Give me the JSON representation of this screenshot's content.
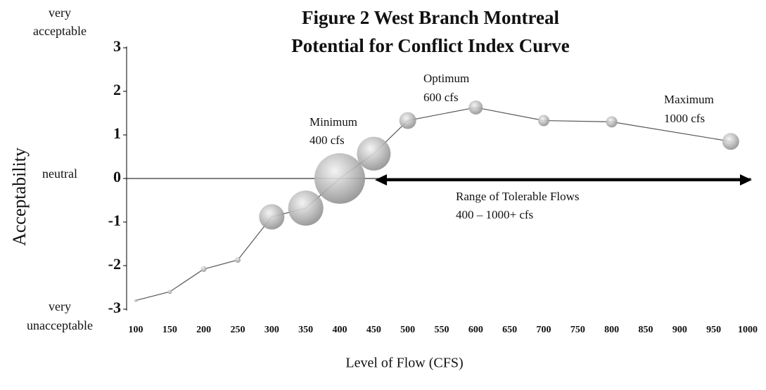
{
  "chart_data": {
    "type": "bubble_line",
    "title": [
      "Figure 2 West Branch Montreal",
      "Potential for Conflict Index Curve"
    ],
    "y_label": "Acceptability",
    "x_label": "Level of Flow (CFS)",
    "side_labels": {
      "top": [
        "very",
        "acceptable"
      ],
      "middle": "neutral",
      "bottom": [
        "very",
        "unacceptable"
      ]
    },
    "annotations": {
      "minimum": [
        "Minimum",
        "400 cfs"
      ],
      "optimum": [
        "Optimum",
        "600 cfs"
      ],
      "maximum": [
        "Maximum",
        "1000 cfs"
      ],
      "range": [
        "Range of Tolerable Flows",
        "400 – 1000+ cfs"
      ]
    },
    "x": [
      100,
      150,
      200,
      250,
      300,
      350,
      400,
      450,
      500,
      600,
      700,
      800,
      975
    ],
    "series": [
      {
        "color": "#555555",
        "values": [
          -2.8,
          -2.6,
          -2.08,
          -1.87,
          -0.88,
          -0.68,
          0.0,
          0.57,
          1.33,
          1.63,
          1.33,
          1.3,
          0.85
        ],
        "sizes": [
          2,
          3,
          4,
          4,
          18,
          25,
          36,
          24,
          12,
          10,
          8,
          8,
          12
        ]
      }
    ],
    "xlim": [
      100,
      1000
    ],
    "xticks": [
      100,
      150,
      200,
      250,
      300,
      350,
      400,
      450,
      500,
      550,
      600,
      650,
      700,
      750,
      800,
      850,
      900,
      950,
      1000
    ],
    "ylim": [
      -3,
      3
    ],
    "yticks": [
      -3,
      -2,
      -1,
      0,
      1,
      2,
      3
    ]
  }
}
